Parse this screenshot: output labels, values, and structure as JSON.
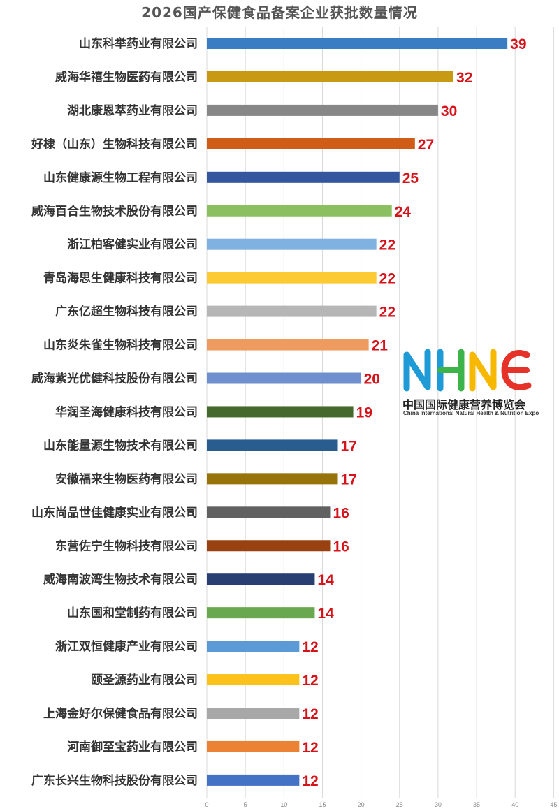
{
  "chart_data": {
    "type": "bar",
    "orientation": "horizontal",
    "title": "2026国产保健食品备案企业获批数量情况",
    "xlim": [
      0,
      45
    ],
    "xticks": [
      0,
      5,
      10,
      15,
      20,
      25,
      30,
      35,
      40,
      45
    ],
    "grid": "vertical",
    "categories": [
      "山东科举药业有限公司",
      "威海华禧生物医药有限公司",
      "湖北康恩萃药业有限公司",
      "好棣（山东）生物科技有限公司",
      "山东健康源生物工程有限公司",
      "威海百合生物技术股份有限公司",
      "浙江柏客健实业有限公司",
      "青岛海思生健康科技有限公司",
      "广东亿超生物科技有限公司",
      "山东炎朱雀生物科技有限公司",
      "威海紫光优健科技股份有限公司",
      "华润圣海健康科技有限公司",
      "山东能量源生物技术有限公司",
      "安徽福来生物医药有限公司",
      "山东尚品世佳健康实业有限公司",
      "东营佐宁生物科技有限公司",
      "威海南波湾生物技术有限公司",
      "山东国和堂制药有限公司",
      "浙江双恒健康产业有限公司",
      "颐圣源药业有限公司",
      "上海金好尔保健食品有限公司",
      "河南御至宝药业有限公司",
      "广东长兴生物科技股份有限公司"
    ],
    "values": [
      39,
      32,
      30,
      27,
      25,
      24,
      22,
      22,
      22,
      21,
      20,
      19,
      17,
      17,
      16,
      16,
      14,
      14,
      12,
      12,
      12,
      12,
      12
    ],
    "colors": [
      "#3a7dc3",
      "#c89a14",
      "#878787",
      "#cf5c17",
      "#33569f",
      "#8cbf5f",
      "#7fb2e0",
      "#fccb33",
      "#b6b6b6",
      "#ef9a5e",
      "#6f8fcf",
      "#45692c",
      "#2a5d8f",
      "#96740a",
      "#616161",
      "#9a4112",
      "#293f72",
      "#6aa84f",
      "#5b9ad4",
      "#fcc21c",
      "#a8a8a8",
      "#ec8233",
      "#4472c4"
    ],
    "value_label_color": "#d4141a"
  },
  "logo": {
    "mark": "NHNE",
    "caption": "中国国际健康营养博览会",
    "subcaption": "China International Natural Health & Nutrition Expo",
    "colors": [
      "#1e9ad6",
      "#3cb44a",
      "#f6b800",
      "#e6332a"
    ]
  }
}
